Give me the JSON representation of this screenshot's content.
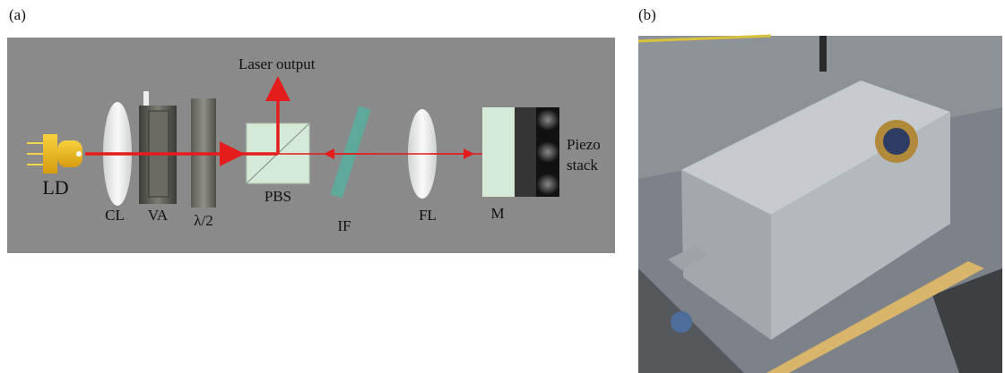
{
  "panel_a": {
    "label": "(a)",
    "output": "Laser output",
    "components": {
      "ld": "LD",
      "cl": "CL",
      "va": "VA",
      "half_wave": "λ/2",
      "pbs": "PBS",
      "if": "IF",
      "fl": "FL",
      "m": "M",
      "piezo": [
        "Piezo",
        "stack"
      ]
    }
  },
  "panel_b": {
    "label": "(b)"
  }
}
